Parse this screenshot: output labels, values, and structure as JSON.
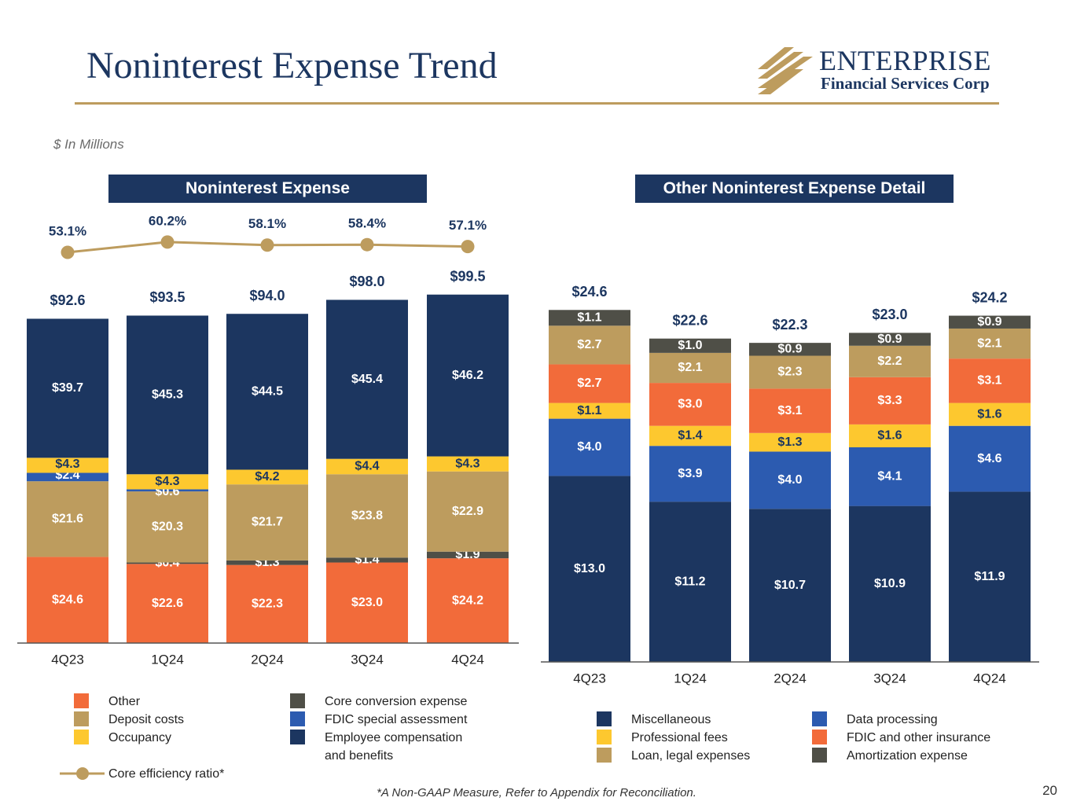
{
  "title": "Noninterest Expense Trend",
  "logo": {
    "name": "ENTERPRISE",
    "subtitle": "Financial Services Corp",
    "icon": "enterprise-stripes-icon"
  },
  "units": "$ In Millions",
  "footnote": "*A Non-GAAP Measure, Refer to Appendix for Reconciliation.",
  "page_number": "20",
  "colors": {
    "navy": "#1c3660",
    "gold": "#bd9c5e",
    "orange": "#f26b3a",
    "yellow": "#fdc82f",
    "blue": "#2c5bb0",
    "dark_gray": "#4f4f47"
  },
  "chart_data": [
    {
      "type": "bar",
      "stacked": true,
      "title": "Noninterest Expense",
      "categories": [
        "4Q23",
        "1Q24",
        "2Q24",
        "3Q24",
        "4Q24"
      ],
      "series": [
        {
          "name": "Other",
          "color": "#f26b3a",
          "values": [
            24.6,
            22.6,
            22.3,
            23.0,
            24.2
          ],
          "labels": [
            "$24.6",
            "$22.6",
            "$22.3",
            "$23.0",
            "$24.2"
          ]
        },
        {
          "name": "Core conversion expense",
          "color": "#4f4f47",
          "values": [
            0,
            0.4,
            1.3,
            1.4,
            1.9
          ],
          "labels": [
            "",
            "$0.4",
            "$1.3",
            "$1.4",
            "$1.9"
          ]
        },
        {
          "name": "Deposit costs",
          "color": "#bd9c5e",
          "values": [
            21.6,
            20.3,
            21.7,
            23.8,
            22.9
          ],
          "labels": [
            "$21.6",
            "$20.3",
            "$21.7",
            "$23.8",
            "$22.9"
          ]
        },
        {
          "name": "FDIC special assessment",
          "color": "#2c5bb0",
          "values": [
            2.4,
            0.6,
            0,
            0,
            0
          ],
          "labels": [
            "$2.4",
            "$0.6",
            "",
            "",
            ""
          ]
        },
        {
          "name": "Occupancy",
          "color": "#fdc82f",
          "values": [
            4.3,
            4.3,
            4.2,
            4.4,
            4.3
          ],
          "labels": [
            "$4.3",
            "$4.3",
            "$4.2",
            "$4.4",
            "$4.3"
          ]
        },
        {
          "name": "Employee compensation and benefits",
          "color": "#1c3660",
          "values": [
            39.7,
            45.3,
            44.5,
            45.4,
            46.2
          ],
          "labels": [
            "$39.7",
            "$45.3",
            "$44.5",
            "$45.4",
            "$46.2"
          ]
        }
      ],
      "totals": [
        "$92.6",
        "$93.5",
        "$94.0",
        "$98.0",
        "$99.5"
      ],
      "totals_values": [
        92.6,
        93.5,
        94.0,
        98.0,
        99.5
      ],
      "line_series": {
        "name": "Core efficiency ratio*",
        "values": [
          53.1,
          60.2,
          58.1,
          58.4,
          57.1
        ],
        "labels": [
          "53.1%",
          "60.2%",
          "58.1%",
          "58.4%",
          "57.1%"
        ]
      },
      "legend": {
        "col1": [
          "Other",
          "Deposit costs",
          "Occupancy"
        ],
        "col2": [
          "Core conversion expense",
          "FDIC special assessment",
          "Employee compensation"
        ],
        "col2_extra": "and benefits",
        "line_label": "Core efficiency ratio*"
      }
    },
    {
      "type": "bar",
      "stacked": true,
      "title": "Other Noninterest Expense Detail",
      "categories": [
        "4Q23",
        "1Q24",
        "2Q24",
        "3Q24",
        "4Q24"
      ],
      "series": [
        {
          "name": "Miscellaneous",
          "color": "#1c3660",
          "values": [
            13.0,
            11.2,
            10.7,
            10.9,
            11.9
          ],
          "labels": [
            "$13.0",
            "$11.2",
            "$10.7",
            "$10.9",
            "$11.9"
          ]
        },
        {
          "name": "Data processing",
          "color": "#2c5bb0",
          "values": [
            4.0,
            3.9,
            4.0,
            4.1,
            4.6
          ],
          "labels": [
            "$4.0",
            "$3.9",
            "$4.0",
            "$4.1",
            "$4.6"
          ]
        },
        {
          "name": "Professional fees",
          "color": "#fdc82f",
          "values": [
            1.1,
            1.4,
            1.3,
            1.6,
            1.6
          ],
          "labels": [
            "$1.1",
            "$1.4",
            "$1.3",
            "$1.6",
            "$1.6"
          ]
        },
        {
          "name": "FDIC and other insurance",
          "color": "#f26b3a",
          "values": [
            2.7,
            3.0,
            3.1,
            3.3,
            3.1
          ],
          "labels": [
            "$2.7",
            "$3.0",
            "$3.1",
            "$3.3",
            "$3.1"
          ]
        },
        {
          "name": "Loan, legal expenses",
          "color": "#bd9c5e",
          "values": [
            2.7,
            2.1,
            2.3,
            2.2,
            2.1
          ],
          "labels": [
            "$2.7",
            "$2.1",
            "$2.3",
            "$2.2",
            "$2.1"
          ]
        },
        {
          "name": "Amortization expense",
          "color": "#4f4f47",
          "values": [
            1.1,
            1.0,
            0.9,
            0.9,
            0.9
          ],
          "labels": [
            "$1.1",
            "$1.0",
            "$0.9",
            "$0.9",
            "$0.9"
          ]
        }
      ],
      "totals": [
        "$24.6",
        "$22.6",
        "$22.3",
        "$23.0",
        "$24.2"
      ],
      "totals_values": [
        24.6,
        22.6,
        22.3,
        23.0,
        24.2
      ],
      "legend": {
        "col1": [
          "Miscellaneous",
          "Professional fees",
          "Loan, legal expenses"
        ],
        "col2": [
          "Data processing",
          "FDIC and other insurance",
          "Amortization expense"
        ]
      }
    }
  ]
}
